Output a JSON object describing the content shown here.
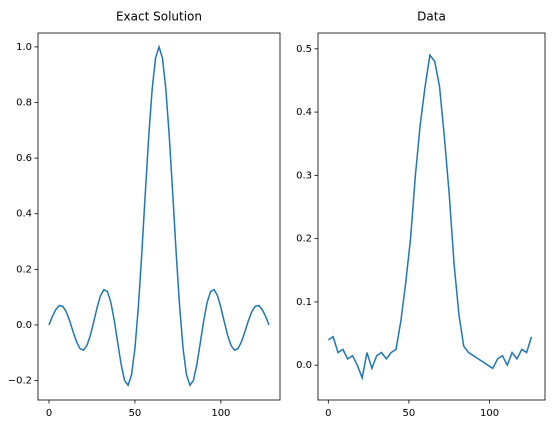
{
  "chart_data": [
    {
      "type": "line",
      "title": "Exact Solution",
      "color": "#1f77b4",
      "x": [
        0,
        2,
        4,
        6,
        8,
        10,
        12,
        14,
        16,
        18,
        20,
        22,
        24,
        26,
        28,
        30,
        32,
        34,
        36,
        38,
        40,
        42,
        44,
        46,
        48,
        50,
        52,
        54,
        56,
        58,
        60,
        62,
        64,
        66,
        68,
        70,
        72,
        74,
        76,
        78,
        80,
        82,
        84,
        86,
        88,
        90,
        92,
        94,
        96,
        98,
        100,
        102,
        104,
        106,
        108,
        110,
        112,
        114,
        116,
        118,
        120,
        122,
        124,
        126,
        128
      ],
      "values": [
        0,
        0.031,
        0.056,
        0.07,
        0.067,
        0.048,
        0.015,
        -0.024,
        -0.06,
        -0.085,
        -0.091,
        -0.075,
        -0.039,
        0.011,
        0.063,
        0.106,
        0.127,
        0.12,
        0.081,
        0.015,
        -0.065,
        -0.143,
        -0.2,
        -0.217,
        -0.18,
        -0.084,
        0.066,
        0.258,
        0.471,
        0.676,
        0.847,
        0.96,
        1,
        0.96,
        0.847,
        0.676,
        0.471,
        0.258,
        0.066,
        -0.084,
        -0.18,
        -0.217,
        -0.2,
        -0.143,
        -0.065,
        0.015,
        0.081,
        0.12,
        0.127,
        0.106,
        0.063,
        0.011,
        -0.039,
        -0.075,
        -0.091,
        -0.085,
        -0.06,
        -0.024,
        0.015,
        0.048,
        0.067,
        0.07,
        0.056,
        0.031,
        0
      ],
      "xlim": [
        -6.4,
        134.4
      ],
      "xticks": [
        0,
        50,
        100
      ],
      "ylim": [
        -0.27,
        1.05
      ],
      "yticks": [
        {
          "value": -0.2,
          "label": "−0.2"
        },
        {
          "value": 0,
          "label": "0.0"
        },
        0.2,
        0.4,
        0.6,
        0.8,
        {
          "value": 1,
          "label": "1.0"
        }
      ]
    },
    {
      "type": "line",
      "title": "Data",
      "color": "#1f77b4",
      "x": [
        0,
        3,
        6,
        9,
        12,
        15,
        18,
        21,
        24,
        27,
        30,
        33,
        36,
        39,
        42,
        45,
        48,
        51,
        54,
        57,
        60,
        63,
        66,
        69,
        72,
        75,
        78,
        81,
        84,
        87,
        90,
        93,
        96,
        99,
        102,
        105,
        108,
        111,
        114,
        117,
        120,
        123,
        126
      ],
      "values": [
        0.04,
        0.045,
        0.02,
        0.025,
        0.01,
        0.015,
        0.0,
        -0.02,
        0.02,
        -0.005,
        0.015,
        0.02,
        0.01,
        0.02,
        0.025,
        0.07,
        0.13,
        0.2,
        0.3,
        0.38,
        0.44,
        0.49,
        0.48,
        0.44,
        0.36,
        0.27,
        0.16,
        0.08,
        0.03,
        0.02,
        0.015,
        0.01,
        0.005,
        0.0,
        -0.005,
        0.01,
        0.015,
        0.0,
        0.02,
        0.01,
        0.025,
        0.02,
        0.045
      ],
      "xlim": [
        -6.4,
        134.4
      ],
      "xticks": [
        0,
        50,
        100
      ],
      "ylim": [
        -0.055,
        0.525
      ],
      "yticks": [
        {
          "value": 0,
          "label": "0.0"
        },
        0.1,
        0.2,
        0.3,
        0.4,
        0.5
      ]
    }
  ]
}
